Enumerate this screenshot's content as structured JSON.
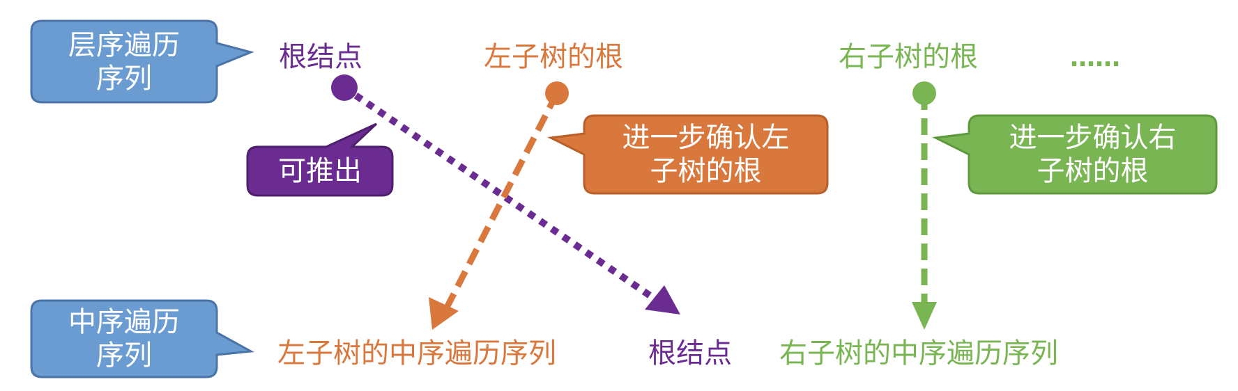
{
  "callouts": {
    "level_order": "层序遍历\n序列",
    "in_order": "中序遍历\n序列",
    "can_derive": "可推出",
    "confirm_left": "进一步确认左\n子树的根",
    "confirm_right": "进一步确认右\n子树的根"
  },
  "top_row": {
    "root": "根结点",
    "left_root": "左子树的根",
    "right_root": "右子树的根",
    "ellipsis": "……"
  },
  "bottom_row": {
    "left_inorder": "左子树的中序遍历序列",
    "root": "根结点",
    "right_inorder": "右子树的中序遍历序列"
  },
  "colors": {
    "blue_fill": "#6a9bd1",
    "blue_border": "#4a74a8",
    "purple": "#6a2c91",
    "orange": "#d9783d",
    "green": "#79b553",
    "white": "#ffffff"
  }
}
